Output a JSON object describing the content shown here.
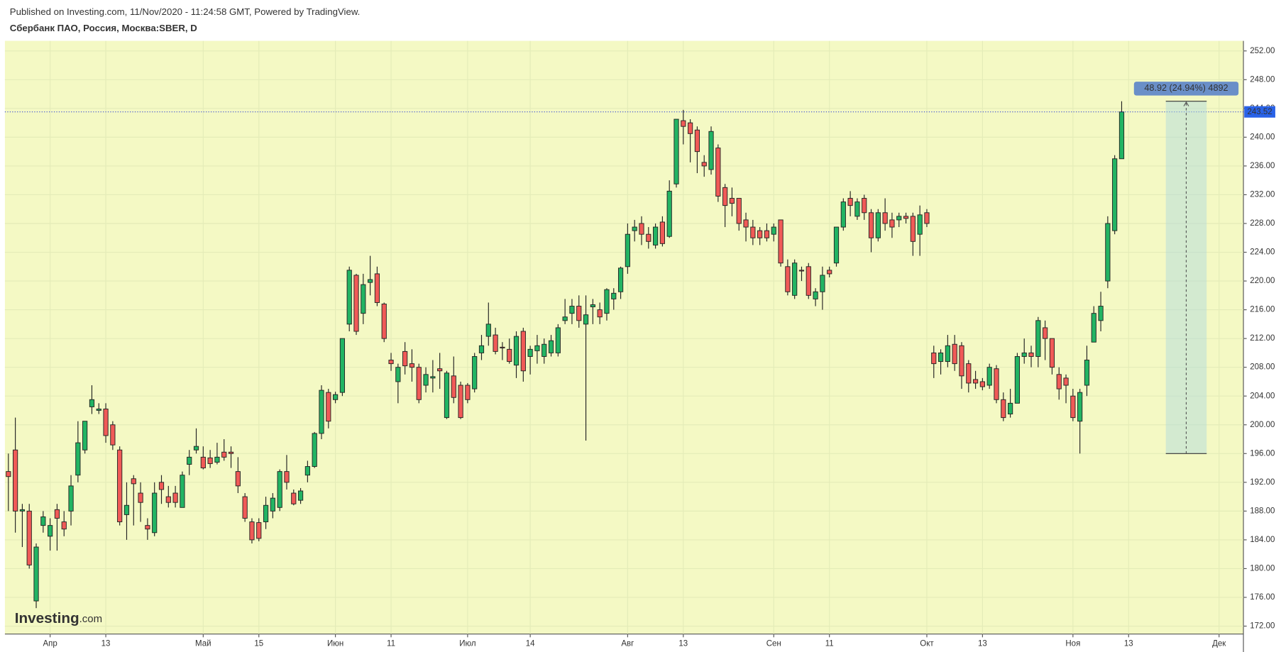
{
  "chart_data": {
    "type": "candlestick",
    "subtitle": "Published on Investing.com, 11/Nov/2020 - 11:24:58 GMT, Powered by TradingView.",
    "title": "Сбербанк ПАО, Россия, Москва:SBER, D",
    "categories": [
      null,
      null,
      null,
      null,
      null,
      null,
      "Апр",
      null,
      null,
      null,
      null,
      null,
      null,
      null,
      "13",
      null,
      null,
      null,
      null,
      null,
      null,
      null,
      null,
      null,
      null,
      null,
      null,
      null,
      "Май",
      null,
      null,
      null,
      null,
      null,
      null,
      null,
      "15",
      null,
      null,
      null,
      null,
      null,
      null,
      null,
      null,
      null,
      null,
      "Июн",
      null,
      null,
      null,
      null,
      null,
      null,
      null,
      "11",
      null,
      null,
      null,
      null,
      null,
      null,
      null,
      null,
      null,
      null,
      "Июл",
      null,
      null,
      null,
      null,
      null,
      null,
      null,
      null,
      "14",
      null,
      null,
      null,
      null,
      null,
      null,
      null,
      null,
      null,
      null,
      null,
      null,
      null,
      "Авг",
      null,
      null,
      null,
      null,
      null,
      null,
      null,
      "13",
      null,
      null,
      null,
      null,
      null,
      null,
      null,
      null,
      null,
      null,
      null,
      null,
      "Сен",
      null,
      null,
      null,
      null,
      null,
      null,
      null,
      "11",
      null,
      null,
      null,
      null,
      null,
      null,
      null,
      null,
      null,
      null,
      null,
      null,
      null,
      "Окт",
      null,
      null,
      null,
      null,
      null,
      null,
      null,
      "13",
      null,
      null,
      null,
      null,
      null,
      null,
      null,
      null,
      null,
      null,
      null,
      null,
      "Ноя",
      null,
      null,
      null,
      null,
      null,
      null,
      null,
      "13",
      null,
      null,
      null,
      null,
      null,
      null,
      null,
      null,
      null,
      null,
      null,
      null,
      "Дек",
      null,
      null,
      null
    ],
    "open": [
      193.5,
      196.5,
      188,
      188,
      175.5,
      186,
      184.5,
      188.2,
      186.5,
      188,
      193,
      196.5,
      202.5,
      202,
      202.2,
      200,
      196.5,
      187.5,
      192.5,
      190.5,
      186,
      185,
      192,
      190,
      190.5,
      188.5,
      194.5,
      196.5,
      195.5,
      195.4,
      194.8,
      196.2,
      196.2,
      193.5,
      190,
      186.5,
      186.4,
      186.5,
      188,
      188.5,
      193.5,
      190.5,
      189.5,
      193,
      194.2,
      198.8,
      204.5,
      203.5,
      204.5,
      214,
      220.8,
      215.5,
      219.8,
      221,
      216.8,
      209,
      206,
      210.2,
      208.5,
      208,
      205.5,
      206.5,
      207.8,
      201,
      206.8,
      205.5,
      205.5,
      205,
      210,
      212.3,
      212.5,
      210.8,
      210.5,
      208.3,
      213,
      209.5,
      210.3,
      209.5,
      210,
      210,
      214.5,
      215.5,
      216.5,
      214,
      216.4,
      216,
      215.5,
      217.5,
      218.5,
      222,
      227,
      228,
      226.5,
      225,
      228.2,
      226.2,
      233.5,
      242.3,
      242,
      241,
      236.5,
      235.5,
      238.5,
      233,
      231.5,
      231.5,
      228.5,
      227.5,
      227,
      227,
      226.5,
      228.5,
      222,
      218,
      221.5,
      222,
      217.5,
      218.5,
      221.5,
      222.5,
      227.5,
      231.5,
      229,
      231.5,
      229.5,
      226,
      229.5,
      228.5,
      228.5,
      229,
      229,
      226.5,
      229.5,
      210,
      208.8,
      208.8,
      211.2,
      211,
      208.5,
      206.3,
      206,
      205.5,
      207.8,
      203.5,
      201.5,
      203,
      209.5,
      210,
      209.5,
      213.5,
      212,
      207,
      206.5,
      204,
      200.5,
      205.5,
      211.5,
      214.5,
      220,
      227,
      237,
      null,
      null,
      null,
      null,
      null,
      null,
      null,
      null,
      null,
      null,
      null,
      null,
      null,
      null,
      null,
      null,
      null
    ],
    "high": [
      196,
      201,
      189,
      189,
      183.5,
      188,
      187,
      189,
      188,
      193,
      200.5,
      200.5,
      205.5,
      203,
      203,
      200.5,
      197,
      192,
      193,
      192,
      187,
      192,
      193,
      191.5,
      191.5,
      193.5,
      196.5,
      199.5,
      197,
      196.5,
      197.5,
      198,
      197,
      195.5,
      190.5,
      187,
      187,
      190,
      190.5,
      193.8,
      195.8,
      191,
      191.2,
      195,
      199,
      205.5,
      205,
      204.6,
      212,
      222,
      221,
      221,
      223.5,
      222,
      217,
      210,
      208.5,
      211.5,
      210.5,
      208.5,
      208,
      209,
      210,
      207.5,
      209.5,
      206,
      205.8,
      210,
      212.5,
      217,
      213.5,
      211.5,
      212,
      213,
      213.5,
      211,
      212.5,
      212,
      212.5,
      214,
      217.5,
      217.5,
      218,
      218,
      217.5,
      217,
      219,
      219,
      222,
      228,
      228.5,
      229,
      227.5,
      228,
      229,
      234,
      242.5,
      243.8,
      242.5,
      241.5,
      237.5,
      241.5,
      239,
      233.5,
      233,
      231.5,
      229.5,
      228.5,
      227.5,
      228,
      228,
      228.5,
      223,
      223,
      222,
      222.5,
      219,
      222,
      222,
      227.5,
      231.5,
      232.5,
      231.5,
      232,
      230,
      230,
      231.5,
      229.5,
      229.5,
      229.5,
      229.5,
      230.5,
      230,
      211,
      210.5,
      212.5,
      212.5,
      211.5,
      209,
      207.5,
      206.5,
      208.5,
      208.3,
      204.5,
      205,
      210,
      212,
      211,
      215,
      214.5,
      212,
      208,
      207,
      205,
      205,
      211,
      216.5,
      218.5,
      229,
      237.5,
      245,
      null,
      null,
      null,
      null,
      null,
      null,
      null,
      null,
      null,
      null,
      null,
      null,
      null,
      null,
      null,
      null,
      null
    ],
    "low": [
      188,
      185,
      183,
      180,
      174.5,
      185,
      182.5,
      182.5,
      184.5,
      186,
      192,
      196,
      201.5,
      201.5,
      197.5,
      196.5,
      186,
      184,
      186,
      186.5,
      184,
      184.5,
      189,
      188.5,
      188.5,
      188.5,
      193,
      196,
      193.8,
      194,
      194.5,
      195,
      194,
      190.5,
      186.5,
      183.5,
      183.8,
      185.5,
      187,
      188,
      191,
      188.8,
      189,
      192,
      194,
      198,
      199.5,
      203,
      204,
      213,
      212.5,
      214,
      218,
      216.5,
      211.5,
      207.5,
      203,
      207,
      206,
      203,
      204.5,
      204.5,
      205,
      200.8,
      203,
      200.8,
      203,
      204.5,
      209,
      211,
      209.8,
      209,
      208.5,
      206.5,
      206,
      207,
      208.5,
      208.5,
      209.5,
      209.5,
      214,
      214,
      213.5,
      197.8,
      214,
      214,
      214.5,
      216,
      217.5,
      221,
      225.5,
      225,
      224.5,
      224.5,
      224.8,
      226,
      233,
      239,
      236.5,
      235,
      234.5,
      234.8,
      231,
      227.5,
      229,
      227,
      225.5,
      225,
      225,
      225.5,
      225.5,
      222,
      218,
      217.5,
      220,
      217.5,
      216.5,
      216,
      220.5,
      222,
      227,
      229,
      228.5,
      228.5,
      224,
      225.5,
      227,
      226,
      227.5,
      228,
      223.5,
      223.5,
      227.5,
      206.5,
      207,
      208,
      207.5,
      205,
      204.5,
      205,
      204.8,
      205,
      203,
      200.5,
      201,
      203,
      208.5,
      208,
      208,
      209,
      207,
      203.5,
      203,
      200.5,
      196,
      204,
      211.5,
      213,
      219,
      226.5,
      237,
      null,
      null,
      null,
      null,
      null,
      null,
      null,
      null,
      null,
      null,
      null,
      null,
      null,
      null,
      null,
      null,
      null
    ],
    "close": [
      192.8,
      188,
      188.2,
      180.5,
      183,
      187.2,
      186,
      187,
      185.5,
      191.5,
      197.5,
      200.5,
      203.5,
      202.2,
      198.5,
      197.2,
      186.5,
      188.8,
      191.8,
      189.2,
      185.5,
      190.5,
      191,
      189.2,
      189.2,
      193,
      195.5,
      197,
      194,
      194.6,
      195.5,
      195.5,
      196,
      191.5,
      187,
      184,
      184.2,
      188.8,
      189.8,
      193.5,
      192,
      189,
      190.8,
      194.2,
      198.8,
      204.8,
      200.5,
      204.2,
      212,
      221.5,
      213,
      219.5,
      220.2,
      217,
      212,
      208.5,
      208,
      208.2,
      208,
      203.5,
      207,
      206.7,
      207.5,
      207.2,
      203.8,
      201,
      203.5,
      209.5,
      211,
      214,
      210.2,
      210.7,
      208.8,
      212.3,
      207.5,
      210.5,
      211,
      211.2,
      211.7,
      213.5,
      215,
      216.5,
      214.5,
      215.3,
      216.7,
      215,
      218.8,
      218.3,
      221.8,
      226.5,
      227.5,
      226.5,
      225.5,
      227.5,
      225.2,
      232.5,
      242.5,
      241.5,
      240.5,
      238,
      236,
      240.8,
      231.8,
      230.5,
      230.8,
      228,
      227.5,
      226,
      226,
      226,
      227.5,
      222.5,
      218.5,
      222.5,
      221.4,
      218,
      218.5,
      220.8,
      221,
      227.5,
      231,
      230.5,
      231,
      229.5,
      226,
      229.5,
      228,
      227.5,
      229,
      228.7,
      225.5,
      229.2,
      228,
      208.5,
      210,
      211,
      208.5,
      206.8,
      205.8,
      205.8,
      205.3,
      208,
      203.5,
      201,
      203,
      209.5,
      210,
      209.5,
      214.5,
      212,
      208,
      205,
      205.5,
      201,
      204.5,
      209,
      215.5,
      216.5,
      228,
      237,
      243.52,
      null,
      null,
      null,
      null,
      null,
      null,
      null,
      null,
      null,
      null,
      null,
      null,
      null,
      null,
      null,
      null,
      null
    ],
    "up_color": "#22b463",
    "down_color": "#f05a57",
    "ylim": [
      170.9,
      253.4
    ],
    "yticks": [
      {
        "value": 172,
        "label": "172.00"
      },
      {
        "value": 176,
        "label": "176.00"
      },
      {
        "value": 180,
        "label": "180.00"
      },
      {
        "value": 184,
        "label": "184.00"
      },
      {
        "value": 188,
        "label": "188.00"
      },
      {
        "value": 192,
        "label": "192.00"
      },
      {
        "value": 196,
        "label": "196.00"
      },
      {
        "value": 200,
        "label": "200.00"
      },
      {
        "value": 204,
        "label": "204.00"
      },
      {
        "value": 208,
        "label": "208.00"
      },
      {
        "value": 212,
        "label": "212.00"
      },
      {
        "value": 216,
        "label": "216.00"
      },
      {
        "value": 220,
        "label": "220.00"
      },
      {
        "value": 224,
        "label": "224.00"
      },
      {
        "value": 228,
        "label": "228.00"
      },
      {
        "value": 232,
        "label": "232.00"
      },
      {
        "value": 236,
        "label": "236.00"
      },
      {
        "value": 240,
        "label": "240.00"
      },
      {
        "value": 244,
        "label": "244.00"
      },
      {
        "value": 248,
        "label": "248.00"
      },
      {
        "value": 252,
        "label": "252.00"
      }
    ],
    "grid": true,
    "last_price": 243.52,
    "annotations": [
      {
        "label": "48.92 (24.94%) 4892",
        "range": [
          196.0,
          245.0
        ]
      }
    ]
  },
  "logo": {
    "name": "Investing",
    "suffix": ".com"
  }
}
